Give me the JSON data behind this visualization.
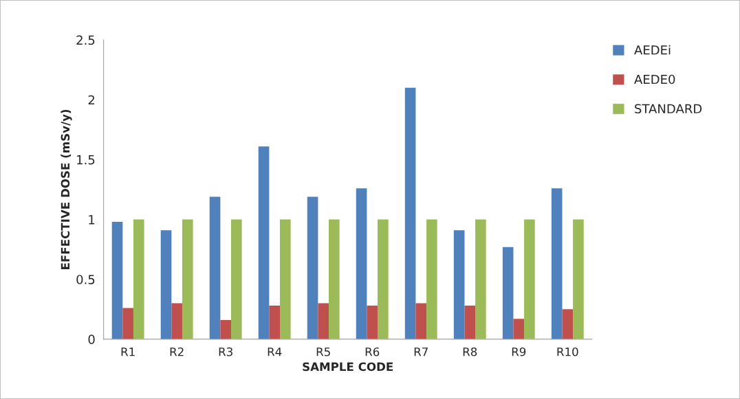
{
  "chart_data": {
    "type": "bar",
    "xlabel": "SAMPLE CODE",
    "ylabel": "EFFECTIVE DOSE (mSv/y)",
    "categories": [
      "R1",
      "R2",
      "R3",
      "R4",
      "R5",
      "R6",
      "R7",
      "R8",
      "R9",
      "R10"
    ],
    "series": [
      {
        "name": "AEDEi",
        "color": "#4f81bd",
        "values": [
          0.98,
          0.91,
          1.19,
          1.61,
          1.19,
          1.26,
          2.1,
          0.91,
          0.77,
          1.26
        ]
      },
      {
        "name": "AEDE0",
        "color": "#c0504d",
        "values": [
          0.26,
          0.3,
          0.16,
          0.28,
          0.3,
          0.28,
          0.3,
          0.28,
          0.17,
          0.25
        ]
      },
      {
        "name": "STANDARD",
        "color": "#9bbb59",
        "values": [
          1,
          1,
          1,
          1,
          1,
          1,
          1,
          1,
          1,
          1
        ]
      }
    ],
    "ylim": [
      0,
      2.5
    ],
    "yticks": [
      0,
      0.5,
      1,
      1.5,
      2,
      2.5
    ],
    "grid": false,
    "legend": "top right"
  }
}
